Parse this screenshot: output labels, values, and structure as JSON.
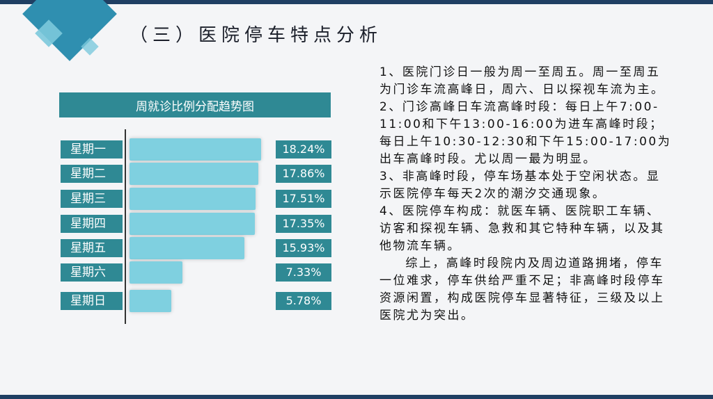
{
  "title": "（三）医院停车特点分析",
  "chart_data": {
    "type": "bar",
    "title": "周就诊比例分配趋势图",
    "categories": [
      "星期一",
      "星期二",
      "星期三",
      "星期四",
      "星期五",
      "星期六",
      "星期日"
    ],
    "values": [
      18.24,
      17.86,
      17.51,
      17.35,
      15.93,
      7.33,
      5.78
    ],
    "value_labels": [
      "18.24%",
      "17.86%",
      "17.51%",
      "17.35%",
      "15.93%",
      "7.33%",
      "5.78%"
    ],
    "orientation": "horizontal",
    "color": "#7fd0e0",
    "label_color": "#2f8994"
  },
  "paragraphs": [
    "1、医院门诊日一般为周一至周五。周一至周五为门诊车流高峰日，周六、日以探视车流为主。",
    "2、门诊高峰日车流高峰时段：每日上午7:00-11:00和下午13:00-16:00为进车高峰时段；每日上午10:30-12:30和下午15:00-17:00为出车高峰时段。尤以周一最为明显。",
    "3、非高峰时段，停车场基本处于空闲状态。显示医院停车每天2次的潮汐交通现象。",
    "4、医院停车构成：就医车辆、医院职工车辆、访客和探视车辆、急救和其它特种车辆，以及其他物流车辆。",
    "综上，高峰时段院内及周边道路拥堵，停车一位难求，停车供给严重不足；非高峰时段停车资源闲置，构成医院停车显著特征，三级及以上医院尤为突出。"
  ]
}
